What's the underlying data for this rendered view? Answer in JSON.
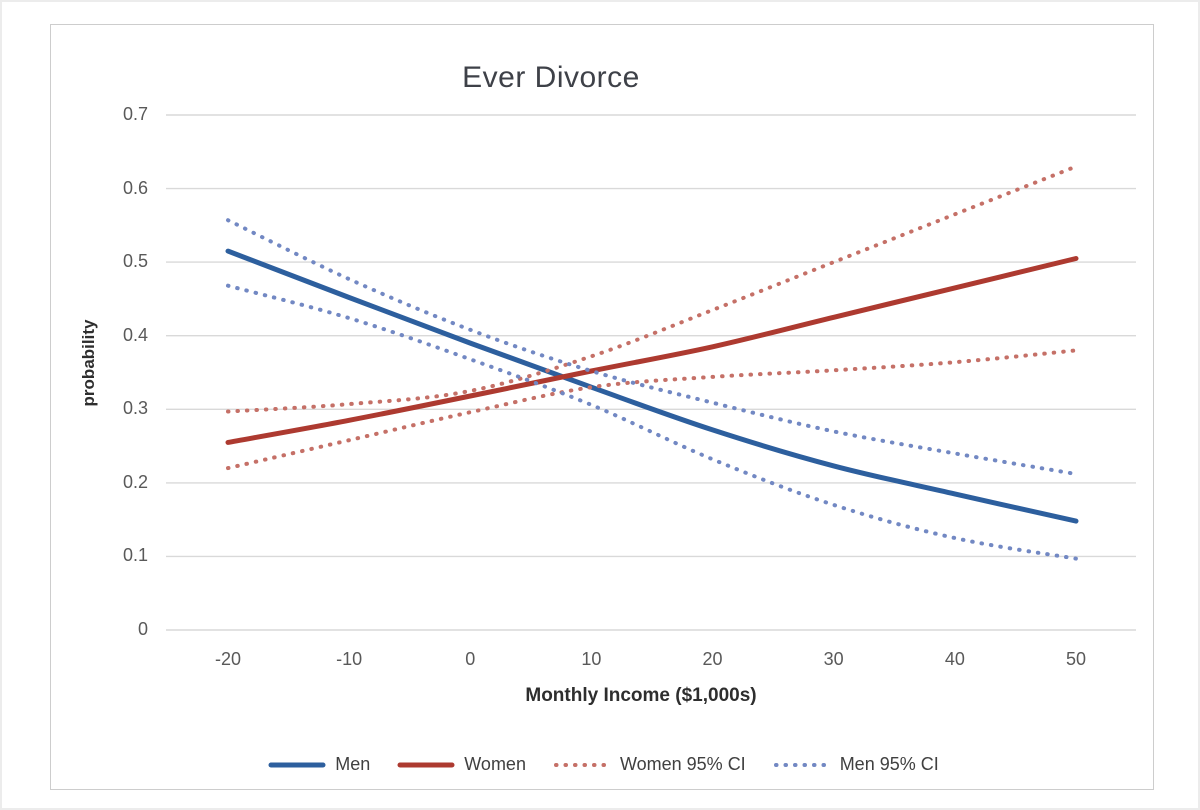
{
  "window": {
    "title": "Ever Divorce chart"
  },
  "chart_data": {
    "type": "line",
    "title": "Ever Divorce",
    "xlabel": "Monthly Income ($1,000s)",
    "ylabel": "probability",
    "x": [
      -20,
      -10,
      0,
      10,
      20,
      30,
      40,
      50
    ],
    "x_tick_labels": [
      "-20",
      "-10",
      "0",
      "10",
      "20",
      "30",
      "40",
      "50"
    ],
    "y_tick_values": [
      0,
      0.1,
      0.2,
      0.3,
      0.4,
      0.5,
      0.6,
      0.7
    ],
    "y_tick_labels": [
      "0",
      "0.1",
      "0.2",
      "0.3",
      "0.4",
      "0.5",
      "0.6",
      "0.7"
    ],
    "xlim": [
      -20,
      50
    ],
    "ylim": [
      0,
      0.7
    ],
    "grid": true,
    "gridline_color": "#d9d9d9",
    "legend_position": "bottom",
    "colors": {
      "men": "#2d5f9e",
      "women": "#ad3a30",
      "women_ci": "#c57067",
      "men_ci": "#7288c3"
    },
    "series": [
      {
        "name": "Men",
        "style": "solid",
        "color": "#2d5f9e",
        "width": 5,
        "lines": [
          [
            0.515,
            0.452,
            0.39,
            0.33,
            0.272,
            0.223,
            0.185,
            0.148
          ]
        ]
      },
      {
        "name": "Women",
        "style": "solid",
        "color": "#ad3a30",
        "width": 5,
        "lines": [
          [
            0.255,
            0.285,
            0.318,
            0.352,
            0.385,
            0.425,
            0.465,
            0.505
          ]
        ]
      },
      {
        "name": "Women 95% CI",
        "style": "dotted",
        "color": "#c57067",
        "width": 4,
        "lines": [
          [
            0.297,
            0.307,
            0.325,
            0.372,
            0.435,
            0.5,
            0.565,
            0.63
          ],
          [
            0.22,
            0.258,
            0.296,
            0.33,
            0.344,
            0.353,
            0.364,
            0.38
          ]
        ]
      },
      {
        "name": "Men 95% CI",
        "style": "dotted",
        "color": "#7288c3",
        "width": 4,
        "lines": [
          [
            0.557,
            0.477,
            0.408,
            0.352,
            0.309,
            0.27,
            0.24,
            0.212
          ],
          [
            0.468,
            0.424,
            0.368,
            0.306,
            0.232,
            0.17,
            0.125,
            0.097
          ]
        ]
      }
    ]
  }
}
